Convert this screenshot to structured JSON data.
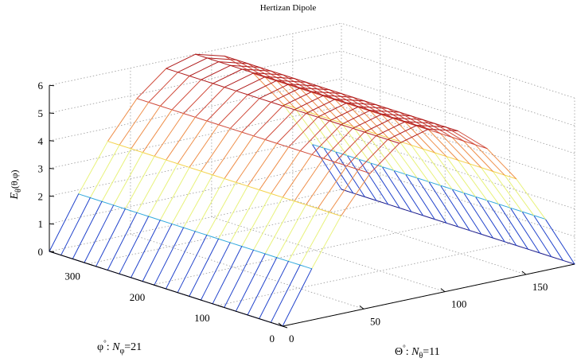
{
  "chart_data": {
    "type": "surface",
    "title": "Hertizan Dipole",
    "zlabel": {
      "main": "E",
      "sub": "θ",
      "rest": "(θ,φ)"
    },
    "phi_axis_label": {
      "sym": "φ",
      "sup": "°",
      "colon": ": ",
      "N": "N",
      "sub": "φ",
      "eq": "=21"
    },
    "theta_axis_label": {
      "sym": "Θ",
      "sup": "°",
      "colon": ": ",
      "N": "N",
      "sub": "θ",
      "eq": "=11"
    },
    "x_axis": {
      "name": "theta_deg",
      "range": [
        0,
        180
      ],
      "ticks": [
        0,
        50,
        100,
        150
      ],
      "tick_labels": [
        "0",
        "50",
        "100",
        "150"
      ]
    },
    "y_axis": {
      "name": "phi_deg",
      "range": [
        0,
        360
      ],
      "ticks": [
        0,
        100,
        200,
        300
      ],
      "tick_labels": [
        "0",
        "100",
        "200",
        "300"
      ]
    },
    "z_axis": {
      "name": "E_theta",
      "range": [
        0,
        6
      ],
      "ticks": [
        0,
        1,
        2,
        3,
        4,
        5,
        6
      ],
      "tick_labels": [
        "0",
        "1",
        "2",
        "3",
        "4",
        "5",
        "6"
      ]
    },
    "N_theta": 11,
    "N_phi": 21,
    "theta_grid": [
      0,
      18,
      36,
      54,
      72,
      90,
      108,
      126,
      144,
      162,
      180
    ],
    "phi_grid": [
      0,
      18,
      36,
      54,
      72,
      90,
      108,
      126,
      144,
      162,
      180,
      198,
      216,
      234,
      252,
      270,
      288,
      306,
      324,
      342,
      360
    ],
    "E_theta_values": [
      0.0,
      1.85,
      3.53,
      4.85,
      5.71,
      6.0,
      5.71,
      4.85,
      3.53,
      1.85,
      0.0
    ],
    "colormap": [
      "#1c1c8c",
      "#2244cc",
      "#33aadd",
      "#55dddd",
      "#e8f27a",
      "#f4d24a",
      "#ef8f4a",
      "#d04a3a",
      "#b01c1c"
    ],
    "grid": true
  }
}
